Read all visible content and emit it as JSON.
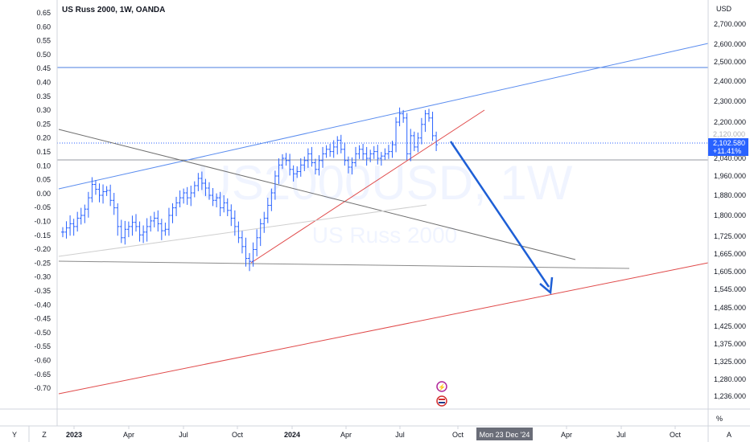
{
  "chart_data": {
    "type": "ohlc",
    "title": "US Russ 2000, 1W, OANDA",
    "watermark": {
      "symbol": "US2000USD, 1W",
      "name": "US Russ 2000"
    },
    "currency_label": "USD",
    "left_axis_labels": [
      "0.65",
      "0.60",
      "0.55",
      "0.50",
      "0.45",
      "0.40",
      "0.35",
      "0.30",
      "0.25",
      "0.20",
      "0.15",
      "0.10",
      "0.05",
      "0.00",
      "-0.05",
      "-0.10",
      "-0.15",
      "-0.20",
      "-0.25",
      "-0.30",
      "-0.35",
      "-0.40",
      "-0.45",
      "-0.50",
      "-0.55",
      "-0.60",
      "-0.65",
      "-0.70"
    ],
    "right_axis_labels": [
      "2,700.000",
      "2,600.000",
      "2,500.000",
      "2,400.000",
      "2,300.000",
      "2,200.000",
      "2,040.000",
      "1,960.000",
      "1,880.000",
      "1,800.000",
      "1,725.000",
      "1,665.000",
      "1,605.000",
      "1,545.000",
      "1,485.000",
      "1,425.000",
      "1,375.000",
      "1,325.000",
      "1,280.000",
      "1,236.000"
    ],
    "time_axis_labels": [
      "2023",
      "Apr",
      "Jul",
      "Oct",
      "2024",
      "Apr",
      "Jul",
      "Oct",
      "Apr",
      "Jul",
      "Oct"
    ],
    "bold_time_labels": [
      "2023",
      "2024"
    ],
    "crosshair_date": "Mon 23 Dec '24",
    "last_price": "2,102.580",
    "last_change": "+11.41%",
    "hidden_price_label": "2,120.000",
    "percent_label": "%",
    "corner_labels": {
      "left": "Y",
      "left2": "Z",
      "right": "A"
    },
    "weekly_closes": [
      1740,
      1755,
      1770,
      1760,
      1790,
      1800,
      1825,
      1870,
      1925,
      1905,
      1880,
      1895,
      1900,
      1860,
      1830,
      1760,
      1720,
      1750,
      1760,
      1775,
      1760,
      1730,
      1740,
      1760,
      1780,
      1790,
      1770,
      1745,
      1750,
      1800,
      1830,
      1850,
      1870,
      1890,
      1870,
      1890,
      1920,
      1950,
      1930,
      1910,
      1880,
      1860,
      1870,
      1830,
      1850,
      1820,
      1790,
      1760,
      1720,
      1690,
      1650,
      1640,
      1680,
      1720,
      1770,
      1790,
      1840,
      1890,
      1960,
      2010,
      2040,
      2030,
      1990,
      1970,
      1980,
      2010,
      2030,
      2060,
      2020,
      1990,
      2030,
      2060,
      2080,
      2070,
      2090,
      2120,
      2080,
      2030,
      2000,
      2020,
      2060,
      2080,
      2060,
      2040,
      2060,
      2070,
      2040,
      2050,
      2060,
      2070,
      2100,
      2200,
      2240,
      2220,
      2060,
      2140,
      2090,
      2130,
      2190,
      2240,
      2220,
      2140,
      2100
    ],
    "colors": {
      "bar": "#2962ff",
      "price_tag": "#2962ff",
      "trend_blue": "#5b8def",
      "trend_red": "#e04a4a",
      "trend_gray": "#808080",
      "arrow": "#1e5fd6",
      "horizontal_blue": "#4a7fe0"
    }
  }
}
